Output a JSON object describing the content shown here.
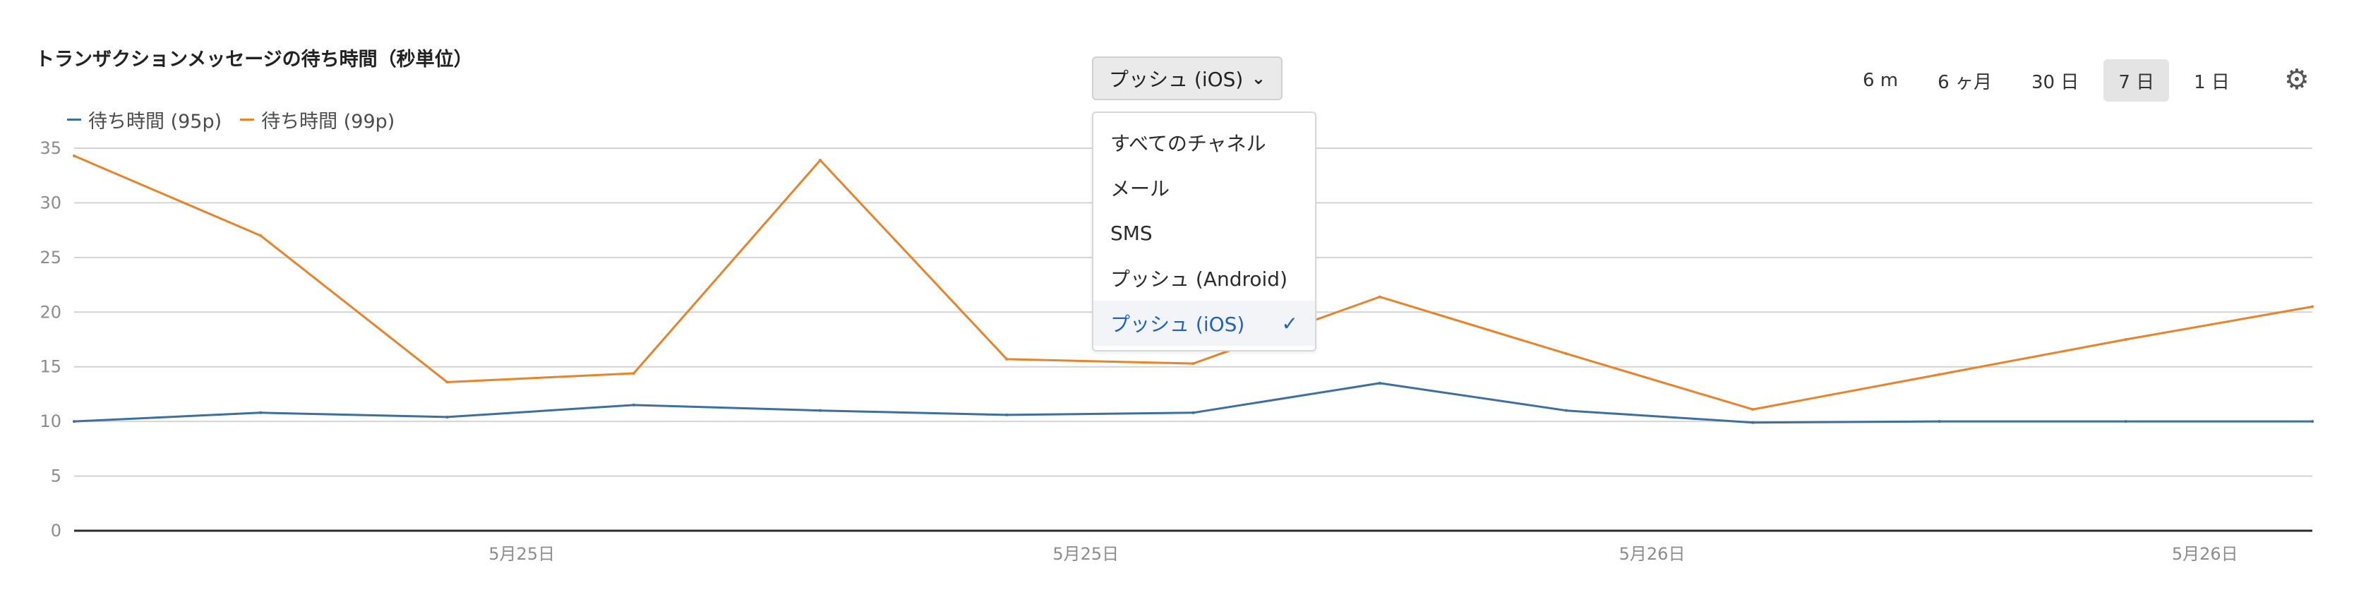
{
  "header": {
    "title": "トランザクションメッセージの待ち時間（秒単位）"
  },
  "channel_picker": {
    "selected_label": "プッシュ (iOS)",
    "options": [
      "すべてのチャネル",
      "メール",
      "SMS",
      "プッシュ (Android)",
      "プッシュ (iOS)"
    ],
    "checked_index": 4
  },
  "time_ranges": {
    "options": [
      "6 m",
      "6 ヶ月",
      "30 日",
      "7 日",
      "1 日"
    ],
    "active_index": 3
  },
  "icons": {
    "settings": "gear-icon",
    "dropdown": "chevron-down-icon",
    "selected": "checkmark-icon"
  },
  "colors": {
    "series_95p": "#3d6f9f",
    "series_99p": "#e8832a",
    "selected_text": "#1e62c8"
  },
  "chart_data": {
    "type": "line",
    "title": "トランザクションメッセージの待ち時間（秒単位）",
    "legend_position": "top-left",
    "grid": true,
    "ylim": [
      0,
      35
    ],
    "yticks": [
      0,
      5,
      10,
      15,
      20,
      25,
      30,
      35
    ],
    "x_tick_labels": [
      "5月25日",
      "5月25日",
      "5月26日",
      "5月26日"
    ],
    "series": [
      {
        "name": "待ち時間 (95p)",
        "values": [
          10.0,
          10.8,
          10.4,
          11.5,
          11.0,
          10.6,
          10.8,
          13.5,
          11.0,
          9.9,
          10.0,
          10.0,
          10.0
        ]
      },
      {
        "name": "待ち時間 (99p)",
        "values": [
          34.3,
          27.0,
          13.6,
          14.4,
          33.9,
          15.7,
          15.3,
          21.4,
          16.2,
          11.1,
          14.3,
          17.5,
          20.5
        ]
      }
    ]
  }
}
